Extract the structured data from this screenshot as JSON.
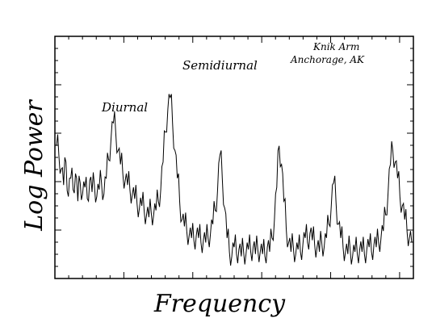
{
  "chart_data": {
    "type": "line",
    "xlabel": "Frequency",
    "ylabel": "Log Power",
    "grid": false,
    "x_tick_labels": false,
    "y_tick_labels": false,
    "annotations": [
      {
        "text": "Diurnal"
      },
      {
        "text": "Semidiurnal"
      },
      {
        "text": "Knik Arm"
      },
      {
        "text": "Anchorage, AK"
      }
    ],
    "series": [
      {
        "x": [
          0,
          1,
          2,
          3,
          4,
          5,
          6,
          7,
          8,
          9,
          10,
          11,
          12,
          13,
          14,
          15,
          16,
          17,
          18,
          19,
          20,
          21,
          22,
          23,
          24,
          25,
          26,
          27,
          28,
          29,
          30,
          31,
          32,
          33,
          34,
          35,
          36,
          37,
          38,
          39,
          40,
          41,
          42,
          43,
          44,
          45,
          46,
          47,
          48,
          49,
          50,
          51,
          52,
          53,
          54,
          55,
          56,
          57,
          58,
          59,
          60,
          61,
          62,
          63,
          64,
          65,
          66,
          67,
          68,
          69,
          70,
          71,
          72,
          73,
          74,
          75,
          76,
          77,
          78,
          79,
          80,
          81,
          82,
          83,
          84,
          85,
          86,
          87,
          88,
          89,
          90,
          91,
          92,
          93,
          94,
          95,
          96,
          97,
          98,
          99,
          100,
          101,
          102,
          103,
          104,
          105,
          106,
          107,
          108,
          109,
          110,
          111,
          112,
          113,
          114,
          115,
          116,
          117,
          118,
          119,
          120,
          121,
          122,
          123,
          124,
          125,
          126,
          127,
          128,
          129,
          130,
          131,
          132,
          133,
          134,
          135,
          136,
          137,
          138,
          139,
          140,
          141,
          142,
          143,
          144,
          145,
          146,
          147,
          148,
          149,
          150
        ],
        "y": [
          0.52,
          0.48,
          0.42,
          0.35,
          0.45,
          0.3,
          0.38,
          0.33,
          0.4,
          0.28,
          0.36,
          0.31,
          0.34,
          0.29,
          0.37,
          0.32,
          0.35,
          0.3,
          0.33,
          0.36,
          0.31,
          0.38,
          0.46,
          0.55,
          0.62,
          0.58,
          0.5,
          0.44,
          0.4,
          0.37,
          0.35,
          0.33,
          0.31,
          0.29,
          0.27,
          0.25,
          0.26,
          0.24,
          0.22,
          0.21,
          0.23,
          0.22,
          0.24,
          0.28,
          0.33,
          0.45,
          0.58,
          0.68,
          0.73,
          0.62,
          0.5,
          0.38,
          0.28,
          0.2,
          0.17,
          0.15,
          0.13,
          0.12,
          0.11,
          0.13,
          0.12,
          0.1,
          0.11,
          0.1,
          0.12,
          0.14,
          0.18,
          0.24,
          0.33,
          0.48,
          0.38,
          0.25,
          0.12,
          0.06,
          0.04,
          0.08,
          0.05,
          0.07,
          0.04,
          0.06,
          0.05,
          0.07,
          0.06,
          0.08,
          0.05,
          0.07,
          0.06,
          0.05,
          0.04,
          0.08,
          0.06,
          0.12,
          0.2,
          0.34,
          0.52,
          0.44,
          0.28,
          0.16,
          0.1,
          0.06,
          0.08,
          0.05,
          0.07,
          0.06,
          0.09,
          0.12,
          0.1,
          0.14,
          0.11,
          0.09,
          0.08,
          0.06,
          0.1,
          0.08,
          0.12,
          0.18,
          0.26,
          0.36,
          0.28,
          0.18,
          0.12,
          0.08,
          0.06,
          0.05,
          0.07,
          0.04,
          0.06,
          0.05,
          0.07,
          0.06,
          0.05,
          0.07,
          0.08,
          0.06,
          0.09,
          0.08,
          0.1,
          0.12,
          0.15,
          0.22,
          0.32,
          0.44,
          0.5,
          0.45,
          0.38,
          0.3,
          0.26,
          0.2,
          0.15,
          0.12,
          0.1
        ]
      }
    ]
  }
}
